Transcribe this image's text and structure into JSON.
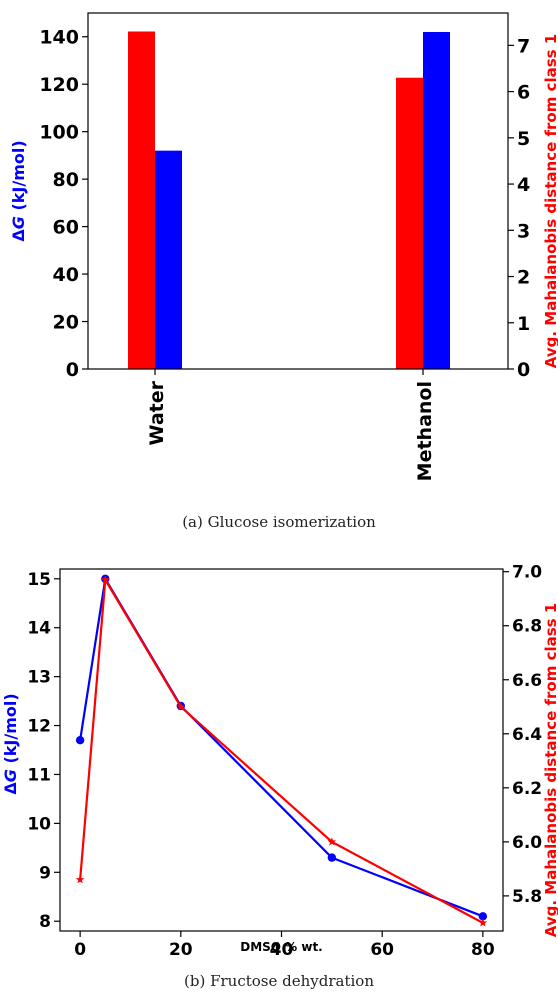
{
  "chart_data": [
    {
      "type": "bar",
      "caption": "(a)  Glucose isomerization",
      "categories": [
        "Water",
        "Methanol"
      ],
      "series": [
        {
          "axis": "right",
          "color": "#ff0000",
          "values": [
            7.3,
            6.3
          ]
        },
        {
          "axis": "left",
          "color": "#0000ff",
          "values": [
            92,
            142
          ]
        }
      ],
      "ylabel_left": "ΔG (kJ/mol)",
      "ylabel_right": "Avg. Mahalanobis distance from class 1",
      "ylim_left": [
        0,
        150
      ],
      "ylim_right": [
        0,
        7.7
      ],
      "yticks_left": [
        0,
        20,
        40,
        60,
        80,
        100,
        120,
        140
      ],
      "yticks_right": [
        0,
        1,
        2,
        3,
        4,
        5,
        6,
        7
      ],
      "grid": false
    },
    {
      "type": "line",
      "caption": "(b)  Fructose dehydration",
      "x": [
        0,
        5,
        20,
        50,
        80
      ],
      "series": [
        {
          "axis": "left",
          "color": "#0000ff",
          "marker": "circle",
          "values": [
            11.7,
            15.0,
            12.4,
            9.3,
            8.1
          ]
        },
        {
          "axis": "right",
          "color": "#ff0000",
          "marker": "star",
          "values": [
            5.86,
            6.97,
            6.5,
            6.0,
            5.7
          ]
        }
      ],
      "xlabel": "DMSO % wt.",
      "ylabel_left": "ΔG (kJ/mol)",
      "ylabel_right": "Avg. Mahalanobis distance from class 1",
      "xlim": [
        -4,
        84
      ],
      "ylim_left": [
        7.8,
        15.2
      ],
      "ylim_right": [
        5.67,
        7.01
      ],
      "xticks": [
        0,
        20,
        40,
        60,
        80
      ],
      "yticks_left": [
        8,
        9,
        10,
        11,
        12,
        13,
        14,
        15
      ],
      "yticks_right": [
        5.8,
        6.0,
        6.2,
        6.4,
        6.6,
        6.8,
        7.0
      ],
      "grid": false
    }
  ]
}
